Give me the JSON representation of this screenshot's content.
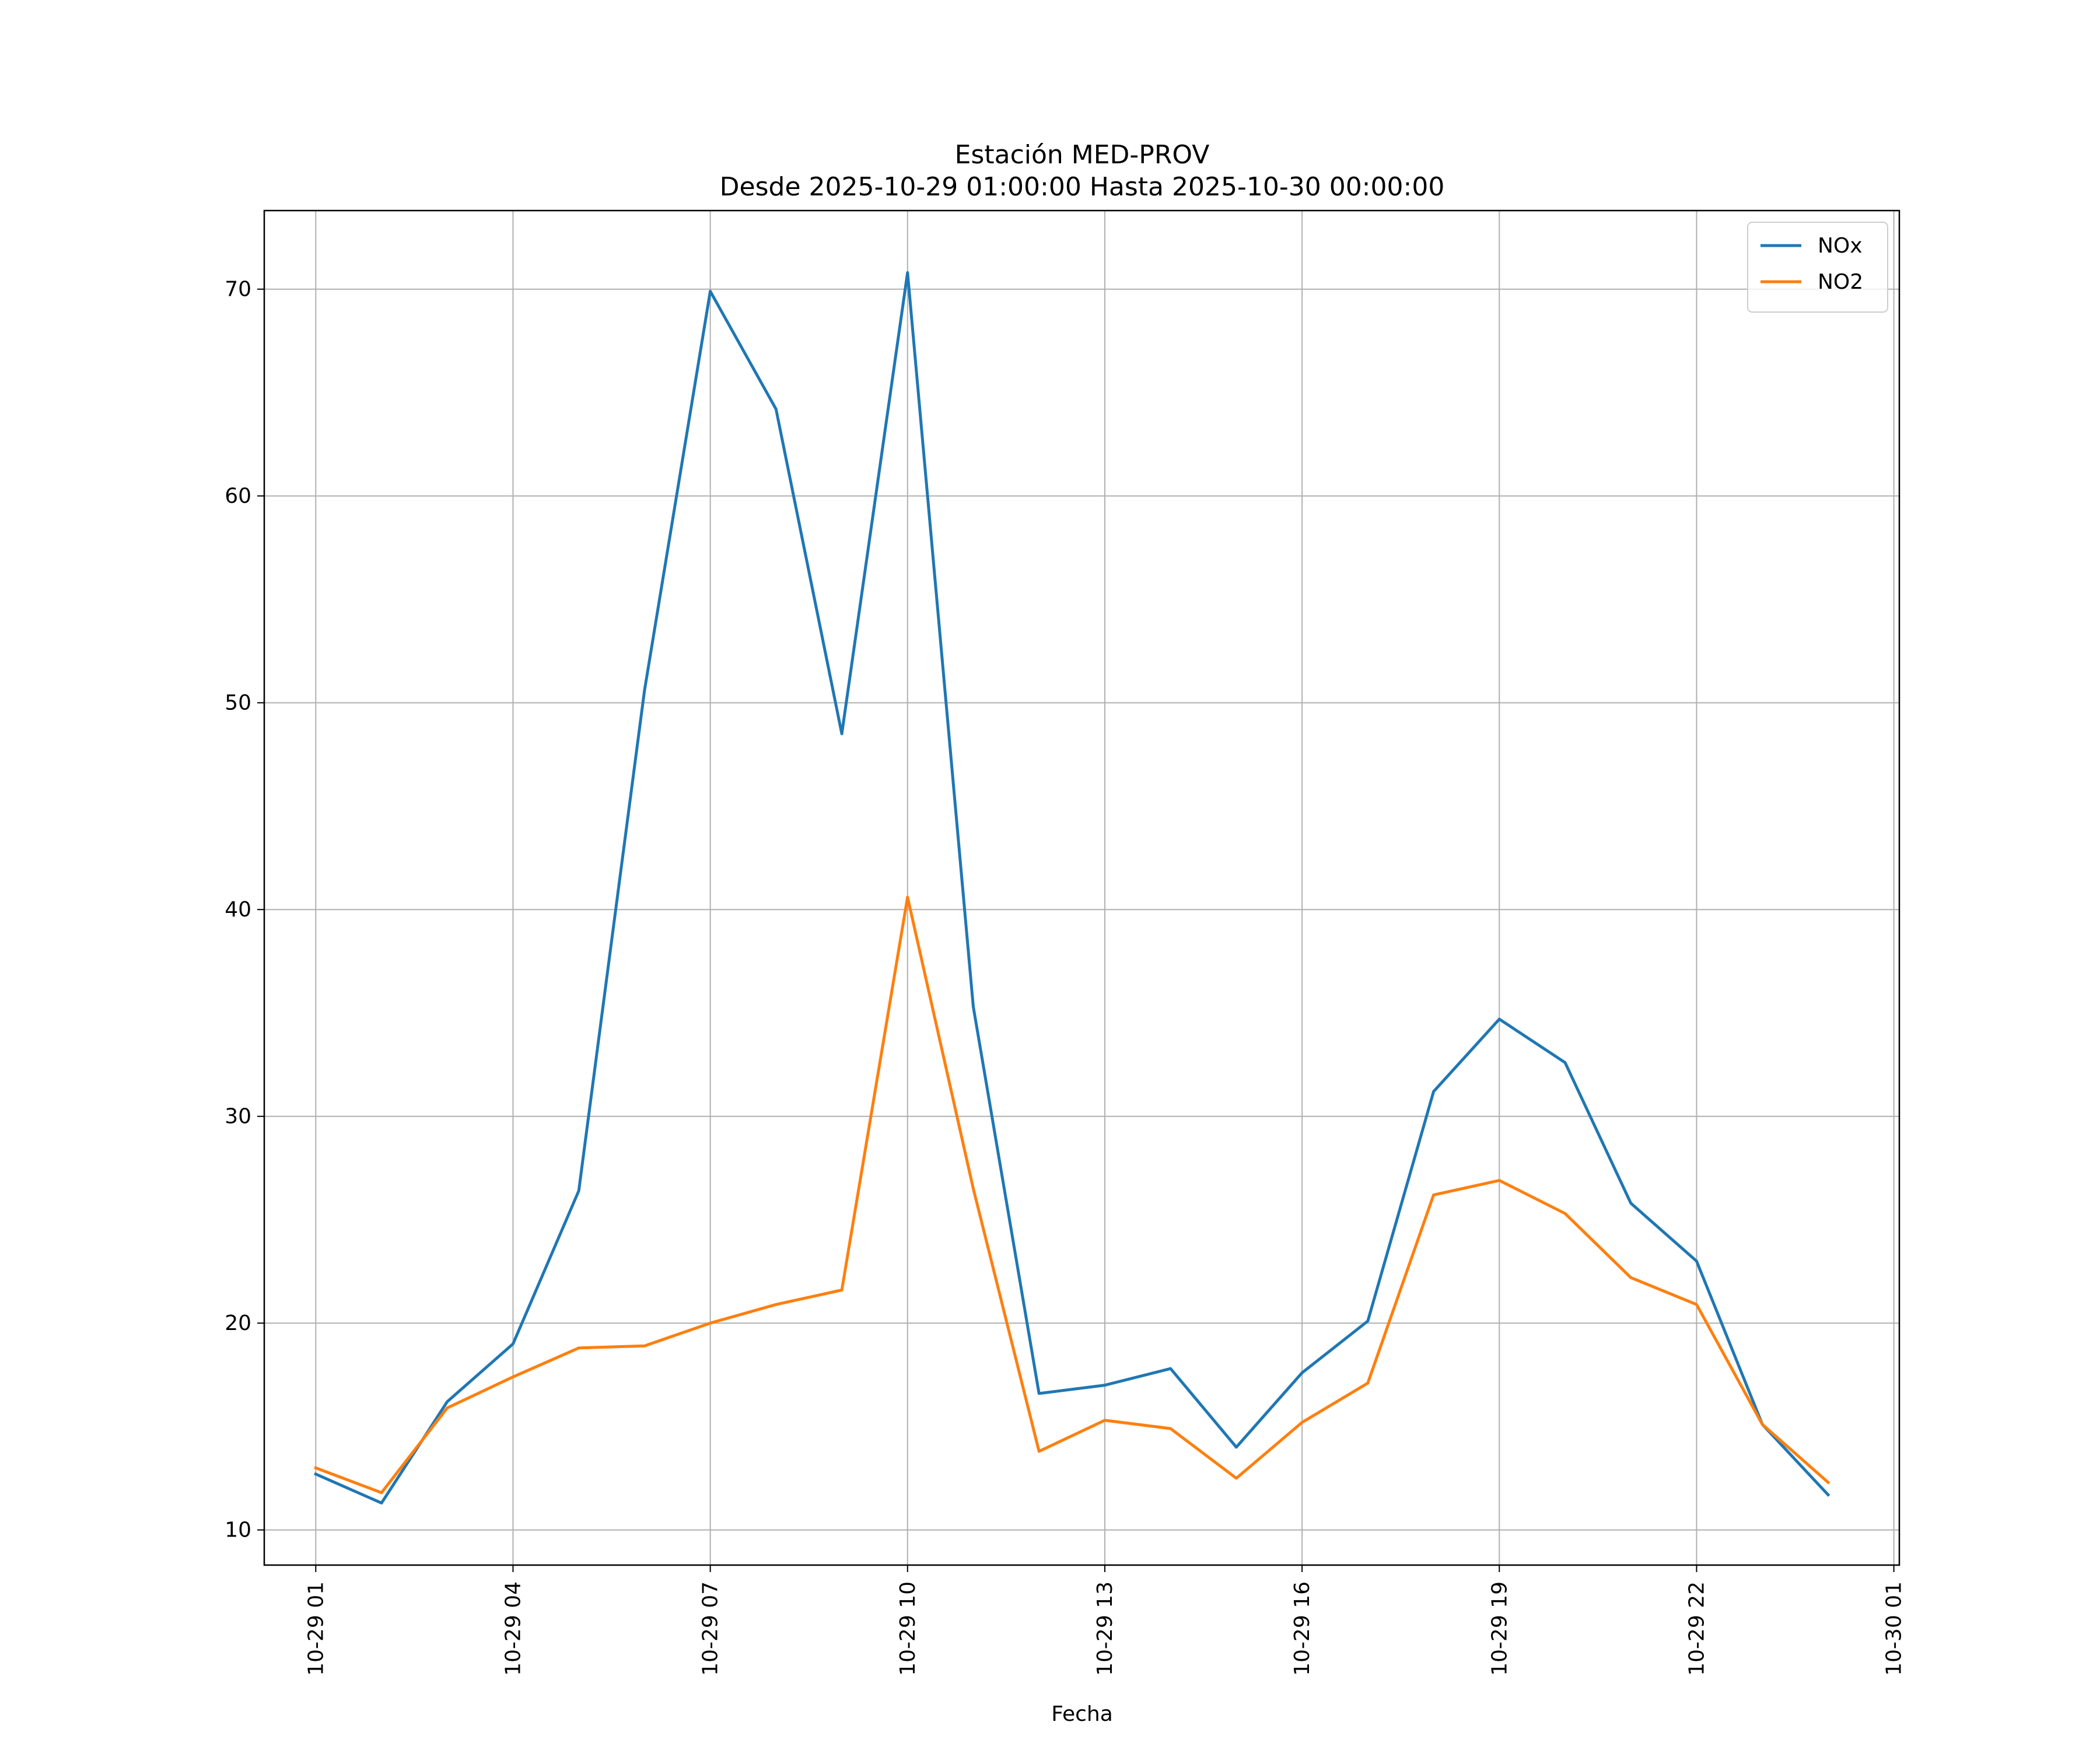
{
  "chart_data": {
    "type": "line",
    "title": "Estación MED-PROV",
    "subtitle": "Desde 2025-10-29 01:00:00 Hasta 2025-10-30 00:00:00",
    "xlabel": "Fecha",
    "ylabel": "",
    "x": [
      "2025-10-29 01:00",
      "2025-10-29 02:00",
      "2025-10-29 03:00",
      "2025-10-29 04:00",
      "2025-10-29 05:00",
      "2025-10-29 06:00",
      "2025-10-29 07:00",
      "2025-10-29 08:00",
      "2025-10-29 09:00",
      "2025-10-29 10:00",
      "2025-10-29 11:00",
      "2025-10-29 12:00",
      "2025-10-29 13:00",
      "2025-10-29 14:00",
      "2025-10-29 15:00",
      "2025-10-29 16:00",
      "2025-10-29 17:00",
      "2025-10-29 18:00",
      "2025-10-29 19:00",
      "2025-10-29 20:00",
      "2025-10-29 21:00",
      "2025-10-29 22:00",
      "2025-10-29 23:00",
      "2025-10-30 00:00"
    ],
    "xlim": [
      "2025-10-29 00:13",
      "2025-10-30 01:05"
    ],
    "ylim": [
      8.3,
      73.8
    ],
    "x_ticks": [
      "10-29 01",
      "10-29 04",
      "10-29 07",
      "10-29 10",
      "10-29 13",
      "10-29 16",
      "10-29 19",
      "10-29 22",
      "10-30 01"
    ],
    "x_tick_dates": [
      "2025-10-29 01:00",
      "2025-10-29 04:00",
      "2025-10-29 07:00",
      "2025-10-29 10:00",
      "2025-10-29 13:00",
      "2025-10-29 16:00",
      "2025-10-29 19:00",
      "2025-10-29 22:00",
      "2025-10-30 01:00"
    ],
    "y_ticks": [
      10,
      20,
      30,
      40,
      50,
      60,
      70
    ],
    "grid": true,
    "legend_position": "top-right",
    "series": [
      {
        "name": "NOx",
        "color": "#1f77b4",
        "values": [
          12.7,
          11.3,
          16.2,
          19.0,
          26.4,
          50.6,
          69.9,
          64.2,
          48.5,
          70.8,
          35.3,
          16.6,
          17.0,
          17.8,
          14.0,
          17.6,
          20.1,
          31.2,
          34.7,
          32.6,
          25.8,
          23.0,
          15.1,
          11.7
        ]
      },
      {
        "name": "NO2",
        "color": "#ff7f0e",
        "values": [
          13.0,
          11.8,
          15.9,
          17.4,
          18.8,
          18.9,
          20.0,
          20.9,
          21.6,
          40.6,
          26.5,
          13.8,
          15.3,
          14.9,
          12.5,
          15.2,
          17.1,
          26.2,
          26.9,
          25.3,
          22.2,
          20.9,
          15.1,
          12.3
        ]
      }
    ]
  }
}
